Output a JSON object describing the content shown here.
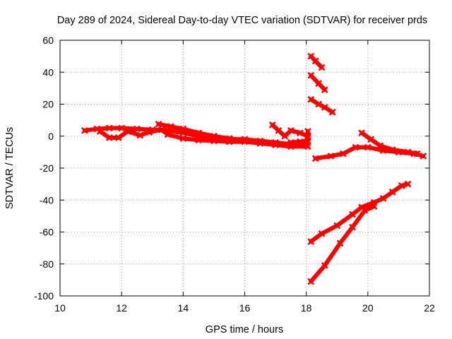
{
  "chart_data": {
    "type": "scatter",
    "title": "Day 289 of 2024, Sidereal Day-to-day VTEC variation (SDTVAR) for receiver prds",
    "xlabel": "GPS time / hours",
    "ylabel": "SDTVAR / TECUs",
    "xlim": [
      10,
      22
    ],
    "ylim": [
      -100,
      60
    ],
    "xticks": [
      10,
      12,
      14,
      16,
      18,
      20,
      22
    ],
    "yticks": [
      -100,
      -80,
      -60,
      -40,
      -20,
      0,
      20,
      40,
      60
    ],
    "grid": true,
    "marker_color": "#ff0000",
    "series": [
      {
        "name": "arc-main-band-a",
        "points": [
          [
            10.8,
            3.5
          ],
          [
            11.2,
            4.5
          ],
          [
            11.6,
            5
          ],
          [
            12,
            5
          ],
          [
            12.5,
            4.5
          ],
          [
            13,
            4
          ],
          [
            13.5,
            3.5
          ],
          [
            14,
            2
          ],
          [
            14.5,
            0
          ],
          [
            15,
            -1.5
          ],
          [
            15.5,
            -2
          ],
          [
            16,
            -2
          ],
          [
            16.5,
            -3
          ],
          [
            17,
            -4
          ],
          [
            17.5,
            -5
          ],
          [
            18,
            -5.5
          ]
        ]
      },
      {
        "name": "arc-main-band-b",
        "points": [
          [
            11.3,
            3
          ],
          [
            11.6,
            -1
          ],
          [
            11.9,
            -1
          ],
          [
            12.2,
            3
          ],
          [
            12.6,
            0.5
          ],
          [
            12.9,
            2.5
          ],
          [
            13.3,
            4
          ],
          [
            13.5,
            1
          ],
          [
            14,
            -1.5
          ],
          [
            14.5,
            -2.5
          ],
          [
            15,
            -3
          ],
          [
            15.5,
            -3.5
          ],
          [
            16,
            -3.5
          ],
          [
            16.5,
            -4.5
          ],
          [
            17,
            -5.5
          ],
          [
            17.5,
            -6.5
          ],
          [
            18.05,
            -6.5
          ]
        ]
      },
      {
        "name": "arc-main-band-c",
        "points": [
          [
            13.2,
            7.5
          ],
          [
            13.6,
            6
          ],
          [
            14,
            4.5
          ],
          [
            14.5,
            2
          ],
          [
            15,
            0
          ],
          [
            15.5,
            -1.5
          ],
          [
            16,
            -2.5
          ]
        ]
      },
      {
        "name": "arc-17h-bump",
        "points": [
          [
            16.9,
            7
          ],
          [
            17.1,
            3.5
          ],
          [
            17.3,
            0
          ],
          [
            17.5,
            3.5
          ],
          [
            17.8,
            2
          ],
          [
            18.05,
            0
          ]
        ]
      },
      {
        "name": "arc-18h-tail",
        "points": [
          [
            17.5,
            -4
          ],
          [
            17.8,
            -3.5
          ],
          [
            18.05,
            -3
          ],
          [
            18.05,
            -1
          ],
          [
            18.05,
            3
          ]
        ]
      },
      {
        "name": "arc-steep-50",
        "points": [
          [
            18.15,
            50
          ],
          [
            18.3,
            47
          ],
          [
            18.5,
            43
          ]
        ]
      },
      {
        "name": "arc-steep-38",
        "points": [
          [
            18.15,
            38
          ],
          [
            18.4,
            33
          ],
          [
            18.6,
            29
          ]
        ]
      },
      {
        "name": "arc-steep-22",
        "points": [
          [
            18.15,
            23
          ],
          [
            18.4,
            20
          ],
          [
            18.6,
            18
          ],
          [
            18.85,
            15
          ]
        ]
      },
      {
        "name": "arc-minus-13",
        "points": [
          [
            18.3,
            -14
          ],
          [
            18.8,
            -12.5
          ],
          [
            19.2,
            -11
          ],
          [
            19.6,
            -7
          ],
          [
            20,
            -7
          ],
          [
            20.5,
            -9
          ],
          [
            21,
            -10
          ],
          [
            21.5,
            -11
          ],
          [
            21.8,
            -12.5
          ]
        ]
      },
      {
        "name": "arc-drop-20h",
        "points": [
          [
            19.8,
            2
          ],
          [
            20.1,
            -2
          ],
          [
            20.4,
            -6
          ],
          [
            20.8,
            -8.5
          ],
          [
            21.3,
            -10
          ],
          [
            21.6,
            -11
          ]
        ]
      },
      {
        "name": "arc-minus-65",
        "points": [
          [
            18.15,
            -66
          ],
          [
            18.5,
            -61
          ],
          [
            19,
            -56
          ],
          [
            19.5,
            -49
          ],
          [
            19.8,
            -44.5
          ],
          [
            20.2,
            -41.5
          ],
          [
            20.5,
            -39
          ],
          [
            20.8,
            -35
          ],
          [
            21.1,
            -31
          ],
          [
            21.3,
            -30
          ]
        ]
      },
      {
        "name": "arc-minus-91",
        "points": [
          [
            18.15,
            -91
          ],
          [
            18.6,
            -81
          ],
          [
            19.1,
            -67
          ],
          [
            19.5,
            -57
          ],
          [
            19.9,
            -46.5
          ],
          [
            20.2,
            -44
          ]
        ]
      }
    ]
  }
}
